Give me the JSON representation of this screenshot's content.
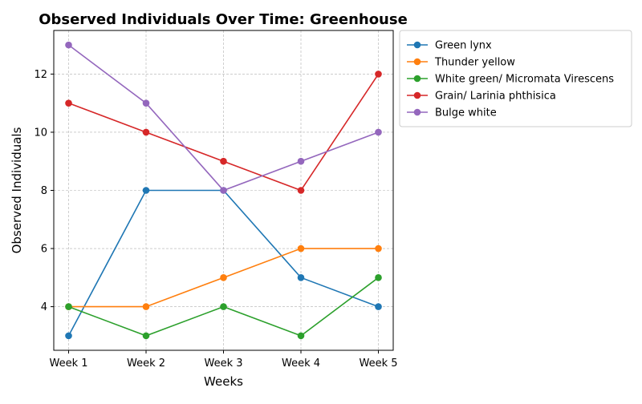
{
  "chart_data": {
    "type": "line",
    "title": "Observed Individuals Over Time: Greenhouse",
    "xlabel": "Weeks",
    "ylabel": "Observed Individuals",
    "categories": [
      "Week 1",
      "Week 2",
      "Week 3",
      "Week 4",
      "Week 5"
    ],
    "ylim": [
      2.5,
      13.5
    ],
    "yticks": [
      4,
      6,
      8,
      10,
      12
    ],
    "grid": true,
    "legend_position": "outside-top-right",
    "series": [
      {
        "name": "Green lynx",
        "color": "#1f77b4",
        "values": [
          3,
          8,
          8,
          5,
          4
        ]
      },
      {
        "name": "Thunder yellow",
        "color": "#ff7f0e",
        "values": [
          4,
          4,
          5,
          6,
          6
        ]
      },
      {
        "name": "White green/ Micromata Virescens",
        "color": "#2ca02c",
        "values": [
          4,
          3,
          4,
          3,
          5
        ]
      },
      {
        "name": "Grain/ Larinia phthisica",
        "color": "#d62728",
        "values": [
          11,
          10,
          9,
          8,
          12
        ]
      },
      {
        "name": "Bulge white",
        "color": "#9467bd",
        "values": [
          13,
          11,
          8,
          9,
          10
        ]
      }
    ]
  }
}
